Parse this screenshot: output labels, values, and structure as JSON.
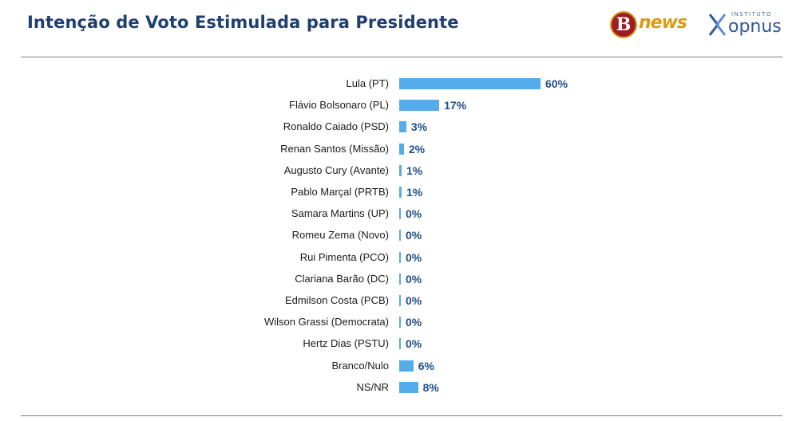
{
  "header": {
    "title": "Intenção de Voto Estimulada para Presidente",
    "logo_bnews_letter": "B",
    "logo_bnews_word": "news",
    "logo_opnus_small": "INSTITUTO",
    "logo_opnus_word": "opnus"
  },
  "colors": {
    "bar": "#55acea",
    "value_label": "#1f4f86",
    "title": "#1f3f6f"
  },
  "chart_data": {
    "type": "bar",
    "orientation": "horizontal",
    "title": "Intenção de Voto Estimulada para Presidente",
    "xlabel": "",
    "ylabel": "",
    "xlim": [
      0,
      100
    ],
    "grid": false,
    "legend": "none",
    "categories": [
      "Lula (PT)",
      "Flávio Bolsonaro (PL)",
      "Ronaldo Caiado (PSD)",
      "Renan Santos (Missão)",
      "Augusto Cury (Avante)",
      "Pablo Marçal (PRTB)",
      "Samara Martins (UP)",
      "Romeu Zema (Novo)",
      "Rui Pimenta (PCO)",
      "Clariana Barão (DC)",
      "Edmilson Costa (PCB)",
      "Wilson Grassi (Democrata)",
      "Hertz Dias (PSTU)",
      "Branco/Nulo",
      "NS/NR"
    ],
    "values": [
      60,
      17,
      3,
      2,
      1,
      1,
      0,
      0,
      0,
      0,
      0,
      0,
      0,
      6,
      8
    ],
    "labels": [
      "60%",
      "17%",
      "3%",
      "2%",
      "1%",
      "1%",
      "0%",
      "0%",
      "0%",
      "0%",
      "0%",
      "0%",
      "0%",
      "6%",
      "8%"
    ]
  }
}
